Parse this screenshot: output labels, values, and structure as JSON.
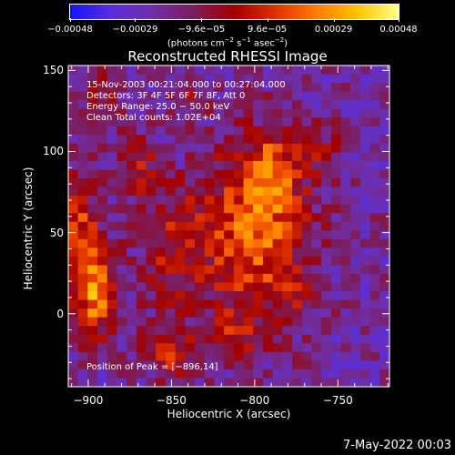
{
  "chart_data": {
    "type": "heatmap",
    "title": "Reconstructed RHESSI Image",
    "xlabel": "Heliocentric X (arcsec)",
    "ylabel": "Heliocentric Y (arcsec)",
    "xlim": [
      -912,
      -719
    ],
    "ylim": [
      -45,
      153
    ],
    "x_ticks": [
      -900,
      -850,
      -800,
      -750
    ],
    "y_ticks": [
      0,
      50,
      100,
      150
    ],
    "x_tick_labels": [
      "−900",
      "−850",
      "−800",
      "−750"
    ],
    "y_tick_labels": [
      "0",
      "50",
      "100",
      "150"
    ],
    "colorbar": {
      "range": [
        -0.00048,
        0.00048
      ],
      "ticks": [
        -0.00048,
        -0.00029,
        -9.6e-05,
        9.6e-05,
        0.00029,
        0.00048
      ],
      "tick_labels": [
        "−0.00048",
        "−0.00029",
        "−9.6e−05",
        "9.6e−05",
        "0.00029",
        "0.00048"
      ],
      "unit_label": {
        "prefix": "(photons cm",
        "exp1": "−2",
        "mid1": " s",
        "exp2": "−1",
        "mid2": " asec",
        "exp3": "−2",
        "suffix": ")"
      },
      "colormap": [
        "#1414ff",
        "#5a2fd8",
        "#6f2fa8",
        "#7c1d5c",
        "#a10000",
        "#e03000",
        "#ff7d00",
        "#ffc400",
        "#ffff8a"
      ]
    },
    "annotations": [
      "15-Nov-2003 00:21:04.000 to 00:27:04.000",
      "Detectors: 3F 4F 5F 6F 7F 8F, Att 0",
      "Energy Range: 25.0 − 50.0 keV",
      "Clean    Total counts: 1.02E+04"
    ],
    "peak_label": "Position of Peak = [−896,14]",
    "peak_position": [
      -896,
      14
    ],
    "grid_shape": [
      33,
      37
    ],
    "bright_regions": [
      {
        "x": -800,
        "y": 50,
        "sx": 22,
        "sy": 38,
        "amp": 0.00042
      },
      {
        "x": -788,
        "y": 88,
        "sx": 10,
        "sy": 16,
        "amp": 0.00028
      },
      {
        "x": -896,
        "y": 14,
        "sx": 9,
        "sy": 20,
        "amp": 0.00048
      },
      {
        "x": -905,
        "y": 60,
        "sx": 7,
        "sy": 22,
        "amp": 0.0003
      },
      {
        "x": -850,
        "y": 40,
        "sx": 15,
        "sy": 28,
        "amp": 0.00022
      },
      {
        "x": -872,
        "y": 92,
        "sx": 8,
        "sy": 14,
        "amp": 0.00024
      },
      {
        "x": -850,
        "y": -25,
        "sx": 14,
        "sy": 10,
        "amp": 0.00026
      },
      {
        "x": -812,
        "y": -12,
        "sx": 10,
        "sy": 9,
        "amp": 0.0002
      },
      {
        "x": -893,
        "y": 130,
        "sx": 8,
        "sy": 12,
        "amp": 0.0002
      },
      {
        "x": -840,
        "y": 132,
        "sx": 6,
        "sy": 6,
        "amp": 0.00018
      },
      {
        "x": -760,
        "y": 100,
        "sx": 8,
        "sy": 12,
        "amp": 0.00016
      },
      {
        "x": -770,
        "y": 15,
        "sx": 8,
        "sy": 12,
        "amp": 0.00012
      }
    ],
    "background_level": -0.00022
  },
  "footer": "7-May-2022 00:03"
}
